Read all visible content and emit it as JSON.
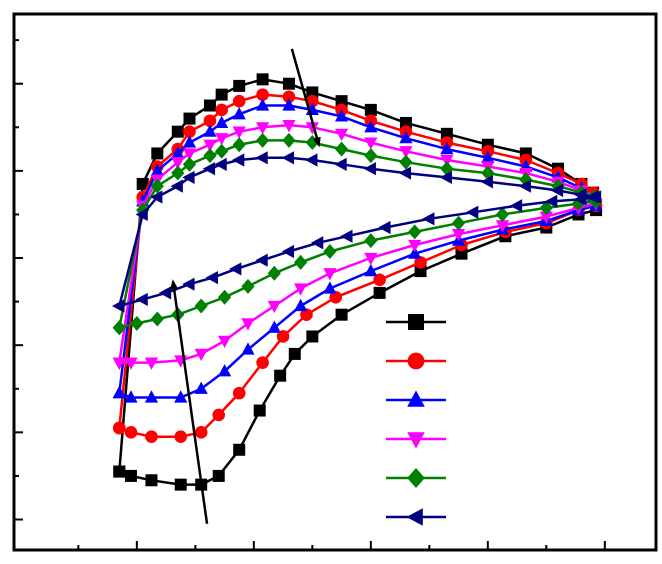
{
  "chart_data": {
    "type": "line",
    "title": "",
    "xlabel": "",
    "ylabel": "",
    "xlim": [
      -8.2,
      13.75
    ],
    "ylim": [
      -10.7,
      1.6
    ],
    "x_ticks_major": [
      -4,
      0,
      4,
      8,
      12
    ],
    "x_ticks_minor": [
      -6,
      -2,
      2,
      6,
      10
    ],
    "y_ticks_major": [
      -10,
      -8,
      -6,
      -4,
      -2,
      0
    ],
    "y_ticks_minor": [
      -9,
      -7,
      -5,
      -3,
      -1,
      1
    ],
    "grid": false,
    "legend": {
      "position": "bottom-right",
      "entries": [
        "",
        "",
        "",
        "",
        "",
        ""
      ]
    },
    "annotations": [
      {
        "type": "arrow",
        "from": [
          -1.6,
          -10.1
        ],
        "to": [
          -2.75,
          -4.6
        ]
      },
      {
        "type": "arrow",
        "from": [
          1.3,
          0.8
        ],
        "to": [
          2.2,
          -1.35
        ]
      }
    ],
    "series": [
      {
        "color": "#000000",
        "marker": "square",
        "x": [
          -4.6,
          -4.2,
          -3.5,
          -2.5,
          -1.8,
          -1.2,
          -0.5,
          0.2,
          0.9,
          1.4,
          2.0,
          3.0,
          4.3,
          5.7,
          7.1,
          8.6,
          10.0,
          11.1,
          11.7,
          11.6,
          11.2,
          10.4,
          9.3,
          8.0,
          6.6,
          5.2,
          4.0,
          3.0,
          2.0,
          1.2,
          0.3,
          -0.5,
          -1.1,
          -1.5,
          -2.2,
          -2.6,
          -3.3,
          -3.8,
          -4.6
        ],
        "y": [
          -8.9,
          -9.0,
          -9.1,
          -9.2,
          -9.2,
          -9.0,
          -8.4,
          -7.5,
          -6.7,
          -6.2,
          -5.8,
          -5.3,
          -4.8,
          -4.3,
          -3.9,
          -3.5,
          -3.3,
          -3.0,
          -2.9,
          -2.5,
          -2.3,
          -1.95,
          -1.6,
          -1.4,
          -1.15,
          -0.9,
          -0.6,
          -0.4,
          -0.2,
          0.0,
          0.1,
          -0.05,
          -0.25,
          -0.5,
          -0.8,
          -1.1,
          -1.6,
          -2.3,
          -8.9
        ]
      },
      {
        "color": "#ff0000",
        "marker": "circle",
        "x": [
          -4.6,
          -4.2,
          -3.5,
          -2.5,
          -1.8,
          -1.2,
          -0.5,
          0.3,
          1.0,
          1.8,
          2.8,
          4.3,
          5.7,
          7.1,
          8.6,
          10.0,
          11.1,
          11.7,
          11.6,
          11.2,
          10.4,
          9.3,
          8.0,
          6.6,
          5.2,
          4.0,
          3.0,
          2.0,
          1.2,
          0.3,
          -0.5,
          -1.1,
          -1.5,
          -2.2,
          -2.6,
          -3.3,
          -3.8,
          -4.6
        ],
        "y": [
          -7.9,
          -8.0,
          -8.1,
          -8.1,
          -8.0,
          -7.6,
          -7.1,
          -6.4,
          -5.8,
          -5.3,
          -4.9,
          -4.5,
          -4.1,
          -3.7,
          -3.4,
          -3.2,
          -2.9,
          -2.8,
          -2.5,
          -2.3,
          -2.05,
          -1.75,
          -1.55,
          -1.35,
          -1.1,
          -0.85,
          -0.6,
          -0.4,
          -0.3,
          -0.25,
          -0.4,
          -0.6,
          -0.85,
          -1.1,
          -1.5,
          -1.9,
          -2.6,
          -7.9
        ]
      },
      {
        "color": "#0000ff",
        "marker": "triangle-up",
        "x": [
          -4.6,
          -4.2,
          -3.5,
          -2.5,
          -1.8,
          -1.0,
          -0.2,
          0.7,
          1.6,
          2.6,
          4.0,
          5.5,
          7.0,
          8.5,
          10.0,
          11.1,
          11.7,
          11.6,
          11.2,
          10.4,
          9.3,
          8.0,
          6.6,
          5.2,
          4.0,
          3.0,
          2.0,
          1.2,
          0.3,
          -0.5,
          -1.1,
          -1.5,
          -2.2,
          -2.6,
          -3.3,
          -3.8,
          -4.6
        ],
        "y": [
          -7.1,
          -7.2,
          -7.2,
          -7.2,
          -7.0,
          -6.6,
          -6.1,
          -5.6,
          -5.1,
          -4.7,
          -4.3,
          -3.9,
          -3.6,
          -3.35,
          -3.15,
          -2.9,
          -2.8,
          -2.6,
          -2.4,
          -2.15,
          -1.9,
          -1.7,
          -1.5,
          -1.25,
          -1.0,
          -0.75,
          -0.6,
          -0.5,
          -0.5,
          -0.7,
          -0.9,
          -1.1,
          -1.35,
          -1.6,
          -2.0,
          -2.7,
          -7.1
        ]
      },
      {
        "color": "#ff00ff",
        "marker": "triangle-down",
        "x": [
          -4.6,
          -4.2,
          -3.5,
          -2.5,
          -1.8,
          -1.0,
          -0.2,
          0.7,
          1.6,
          2.6,
          4.0,
          5.5,
          7.0,
          8.5,
          10.0,
          11.1,
          11.7,
          11.6,
          11.2,
          10.4,
          9.3,
          8.0,
          6.6,
          5.2,
          4.0,
          3.0,
          2.0,
          1.2,
          0.3,
          -0.5,
          -1.1,
          -1.5,
          -2.2,
          -2.6,
          -3.3,
          -3.8,
          -4.6
        ],
        "y": [
          -6.4,
          -6.4,
          -6.4,
          -6.35,
          -6.2,
          -5.9,
          -5.5,
          -5.1,
          -4.7,
          -4.35,
          -4.0,
          -3.7,
          -3.45,
          -3.25,
          -3.05,
          -2.85,
          -2.75,
          -2.6,
          -2.45,
          -2.25,
          -2.05,
          -1.9,
          -1.75,
          -1.55,
          -1.35,
          -1.15,
          -1.0,
          -0.95,
          -1.0,
          -1.1,
          -1.25,
          -1.4,
          -1.6,
          -1.8,
          -2.2,
          -2.8,
          -6.4
        ]
      },
      {
        "color": "#008000",
        "marker": "diamond",
        "x": [
          -4.6,
          -4.0,
          -3.3,
          -2.6,
          -1.8,
          -1.0,
          -0.2,
          0.7,
          1.6,
          2.6,
          4.0,
          5.5,
          7.0,
          8.5,
          10.0,
          11.1,
          11.7,
          11.6,
          11.2,
          10.4,
          9.3,
          8.0,
          6.6,
          5.2,
          4.0,
          3.0,
          2.0,
          1.2,
          0.3,
          -0.5,
          -1.1,
          -1.5,
          -2.2,
          -2.6,
          -3.3,
          -3.8,
          -4.6
        ],
        "y": [
          -5.6,
          -5.5,
          -5.4,
          -5.3,
          -5.1,
          -4.9,
          -4.65,
          -4.35,
          -4.1,
          -3.85,
          -3.6,
          -3.4,
          -3.2,
          -3.0,
          -2.85,
          -2.75,
          -2.7,
          -2.6,
          -2.5,
          -2.35,
          -2.2,
          -2.05,
          -1.95,
          -1.8,
          -1.65,
          -1.5,
          -1.35,
          -1.3,
          -1.3,
          -1.4,
          -1.55,
          -1.65,
          -1.85,
          -2.05,
          -2.35,
          -2.9,
          -5.6
        ]
      },
      {
        "color": "#000080",
        "marker": "triangle-left",
        "x": [
          -4.6,
          -3.8,
          -3.0,
          -2.2,
          -1.4,
          -0.6,
          0.3,
          1.2,
          2.2,
          3.2,
          4.5,
          6.0,
          7.5,
          9.0,
          10.2,
          11.2,
          11.7,
          11.6,
          11.2,
          10.4,
          9.3,
          8.0,
          6.6,
          5.2,
          4.0,
          3.0,
          2.0,
          1.2,
          0.3,
          -0.5,
          -1.1,
          -1.5,
          -2.2,
          -2.6,
          -3.3,
          -3.8,
          -4.6
        ],
        "y": [
          -5.1,
          -4.95,
          -4.8,
          -4.6,
          -4.45,
          -4.25,
          -4.05,
          -3.85,
          -3.65,
          -3.5,
          -3.3,
          -3.1,
          -2.95,
          -2.8,
          -2.7,
          -2.65,
          -2.6,
          -2.6,
          -2.55,
          -2.45,
          -2.35,
          -2.25,
          -2.15,
          -2.05,
          -1.95,
          -1.85,
          -1.75,
          -1.7,
          -1.7,
          -1.75,
          -1.85,
          -1.95,
          -2.15,
          -2.35,
          -2.6,
          -3.0,
          -5.1
        ]
      }
    ]
  }
}
